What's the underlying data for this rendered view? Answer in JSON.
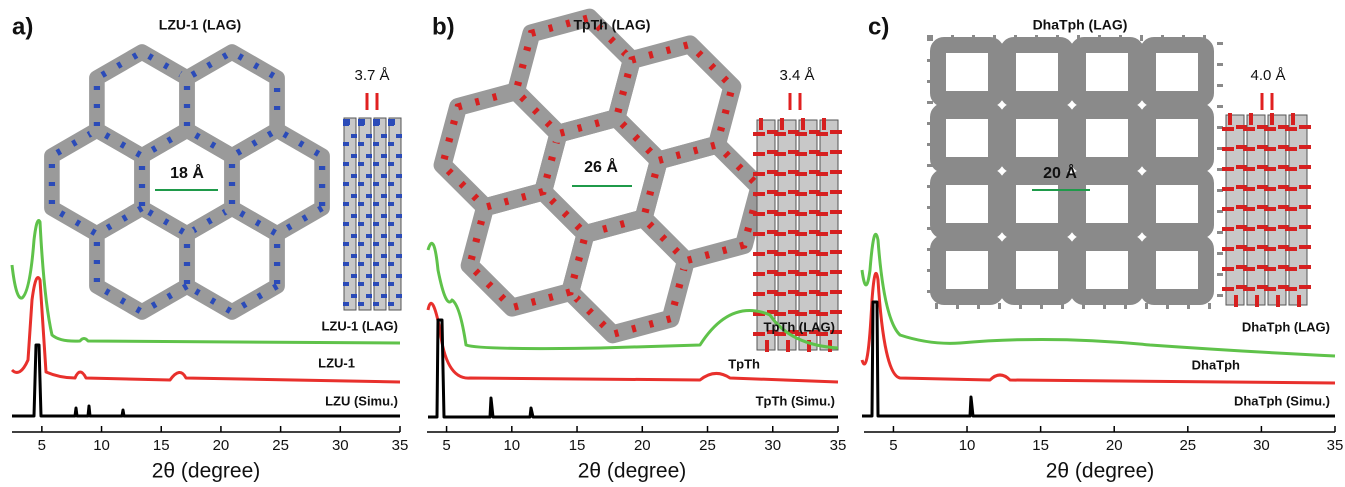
{
  "panels": [
    {
      "label": "a)",
      "title": "LZU-1 (LAG)",
      "pore_size": "18 Å",
      "stacking_distance": "3.7 Å",
      "traces": [
        "LZU-1 (LAG)",
        "LZU-1",
        "LZU (Simu.)"
      ],
      "x_axis": {
        "label": "2θ (degree)",
        "xlim": [
          2.5,
          35
        ],
        "xticks": [
          5,
          10,
          15,
          20,
          25,
          30,
          35
        ]
      }
    },
    {
      "label": "b)",
      "title": "TpTh (LAG)",
      "pore_size": "26 Å",
      "stacking_distance": "3.4 Å",
      "traces": [
        "TpTh (LAG)",
        "TpTh",
        "TpTh (Simu.)"
      ],
      "x_axis": {
        "label": "2θ (degree)",
        "xlim": [
          3.5,
          35
        ],
        "xticks": [
          5,
          10,
          15,
          20,
          25,
          30,
          35
        ]
      }
    },
    {
      "label": "c)",
      "title": "DhaTph (LAG)",
      "pore_size": "20 Å",
      "stacking_distance": "4.0 Å",
      "traces": [
        "DhaTph (LAG)",
        "DhaTph",
        "DhaTph (Simu.)"
      ],
      "x_axis": {
        "label": "2θ (degree)",
        "xlim": [
          3,
          35
        ],
        "xticks": [
          5,
          10,
          15,
          20,
          25,
          30,
          35
        ]
      }
    }
  ]
}
